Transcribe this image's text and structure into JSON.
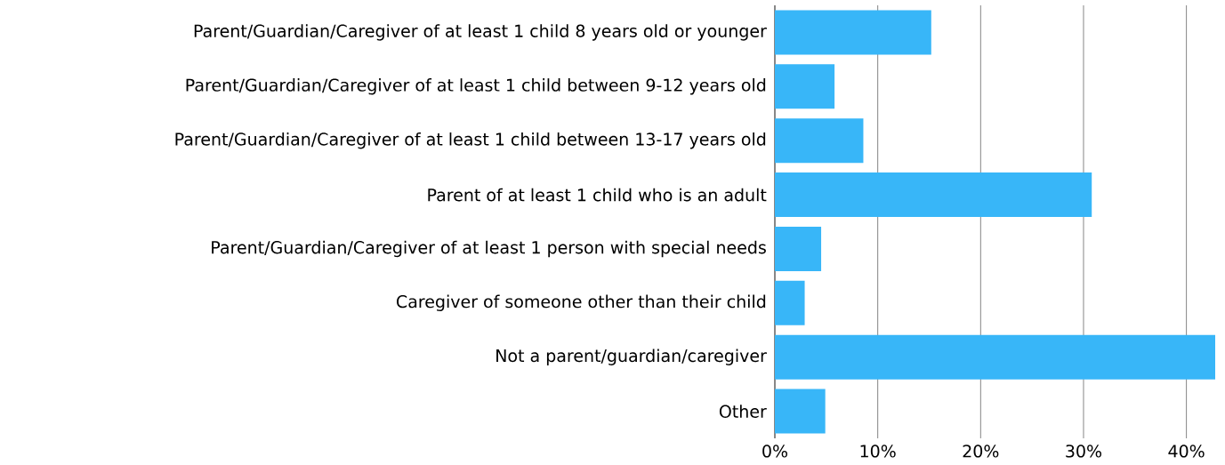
{
  "chart_data": {
    "type": "bar",
    "orientation": "horizontal",
    "categories": [
      "Parent/Guardian/Caregiver of at least 1 child 8 years old or younger",
      "Parent/Guardian/Caregiver of at least 1 child between 9-12 years old",
      "Parent/Guardian/Caregiver of at least 1 child between 13-17 years old",
      "Parent of at least 1 child who is an adult",
      "Parent/Guardian/Caregiver of at least 1 person with special needs",
      "Caregiver of someone other than their child",
      "Not a parent/guardian/caregiver",
      "Other"
    ],
    "values": [
      15.2,
      5.8,
      8.6,
      30.8,
      4.5,
      2.9,
      42.8,
      4.9
    ],
    "color": "#38b6f8",
    "xlim": [
      0,
      42.8
    ],
    "xticks": [
      {
        "value": 0,
        "label": "0%"
      },
      {
        "value": 10,
        "label": "10%"
      },
      {
        "value": 20,
        "label": "20%"
      },
      {
        "value": 30,
        "label": "30%"
      },
      {
        "value": 40,
        "label": "40%"
      }
    ],
    "grid": "x"
  }
}
